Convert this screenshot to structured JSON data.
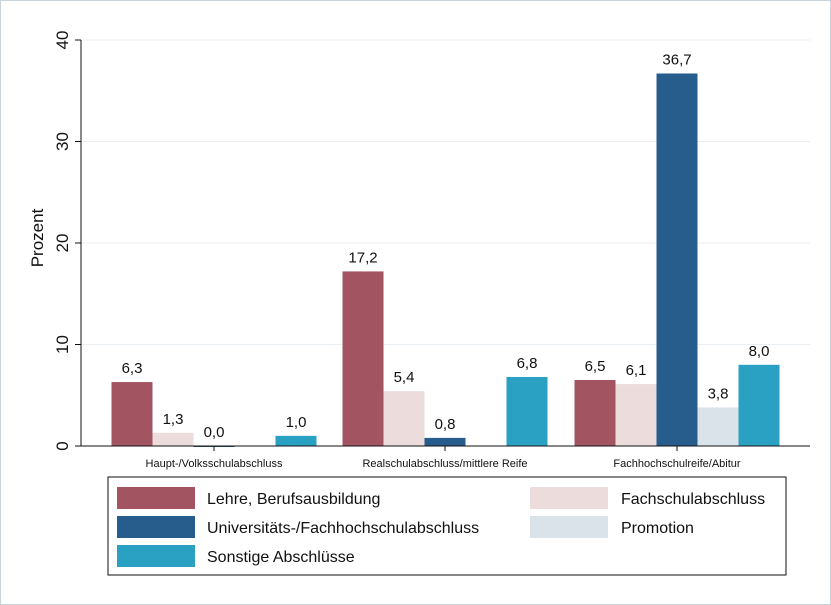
{
  "chart_data": {
    "type": "bar",
    "title": "",
    "xlabel": "",
    "ylabel": "Prozent",
    "ylim": [
      0,
      40
    ],
    "yticks": [
      0,
      10,
      20,
      30,
      40
    ],
    "grid": true,
    "legend_position": "bottom",
    "categories": [
      "Haupt-/Volksschulabschluss",
      "Realschulabschluss/mittlere Reife",
      "Fachhochschulreife/Abitur"
    ],
    "series": [
      {
        "name": "Lehre, Berufsausbildung",
        "color": "#a25461",
        "values": [
          6.3,
          17.2,
          6.5
        ],
        "labels": [
          "6,3",
          "17,2",
          "6,5"
        ]
      },
      {
        "name": "Fachschulabschluss",
        "color": "#ecdcdc",
        "values": [
          1.3,
          5.4,
          6.1
        ],
        "labels": [
          "1,3",
          "5,4",
          "6,1"
        ]
      },
      {
        "name": "Universitäts-/Fachhochschulabschluss",
        "color": "#275d8c",
        "values": [
          0.0,
          0.8,
          36.7
        ],
        "labels": [
          "0,0",
          "0,8",
          "36,7"
        ]
      },
      {
        "name": "Promotion",
        "color": "#dae3ea",
        "values": [
          null,
          null,
          3.8
        ],
        "labels": [
          null,
          null,
          "3,8"
        ]
      },
      {
        "name": "Sonstige Abschlüsse",
        "color": "#2aa1c3",
        "values": [
          1.0,
          6.8,
          8.0
        ],
        "labels": [
          "1,0",
          "6,8",
          "8,0"
        ]
      }
    ]
  }
}
